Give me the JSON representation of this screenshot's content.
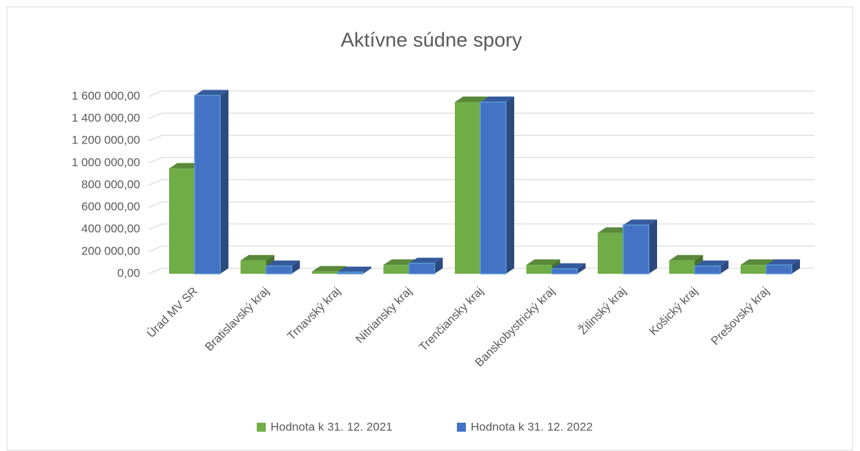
{
  "chart_data": {
    "type": "bar3d",
    "title": "Aktívne súdne spory",
    "categories": [
      "Úrad MV SR",
      "Bratislavský kraj",
      "Trnavský kraj",
      "Nitriansky kraj",
      "Trenčiansky kraj",
      "Banskobystrický kraj",
      "Žilinský kraj",
      "Košický kraj",
      "Prešovský kraj"
    ],
    "series": [
      {
        "name": "Hodnota k 31. 12. 2021",
        "color": "#70ad47",
        "values": [
          950000,
          120000,
          20000,
          80000,
          1550000,
          80000,
          370000,
          120000,
          80000
        ]
      },
      {
        "name": "Hodnota k 31. 12. 2022",
        "color": "#4472c4",
        "values": [
          1610000,
          70000,
          15000,
          95000,
          1550000,
          45000,
          440000,
          70000,
          80000
        ]
      }
    ],
    "ylim": [
      0,
      1600000
    ],
    "yticks": [
      {
        "value": 0,
        "label": "0,00"
      },
      {
        "value": 200000,
        "label": "200 000,00"
      },
      {
        "value": 400000,
        "label": "400 000,00"
      },
      {
        "value": 600000,
        "label": "600 000,00"
      },
      {
        "value": 800000,
        "label": "800 000,00"
      },
      {
        "value": 1000000,
        "label": "1 000 000,00"
      },
      {
        "value": 1200000,
        "label": "1 200 000,00"
      },
      {
        "value": 1400000,
        "label": "1 400 000,00"
      },
      {
        "value": 1600000,
        "label": "1 600 000,00"
      }
    ],
    "grid": true,
    "legend": "bottom"
  }
}
